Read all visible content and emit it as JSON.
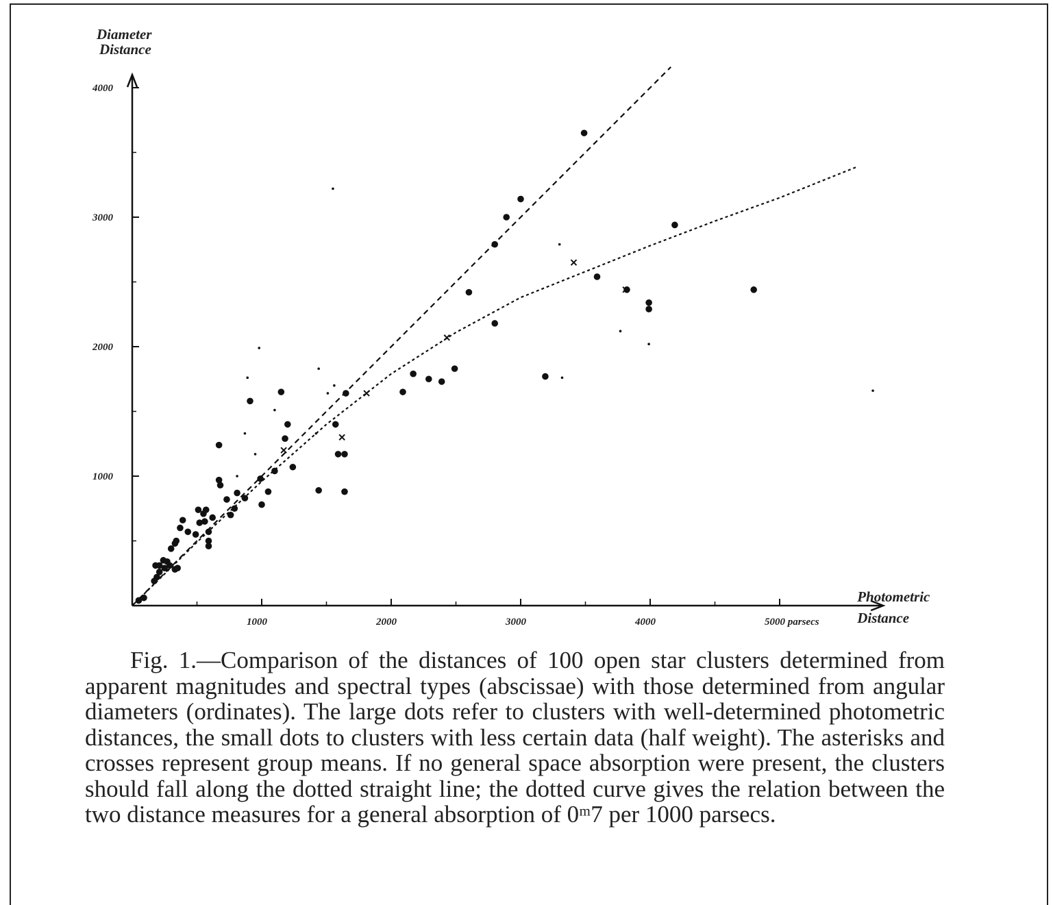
{
  "chart_data": {
    "type": "scatter",
    "ylabel": [
      "Diameter",
      "Distance"
    ],
    "xlabel": [
      "Photometric",
      "Distance"
    ],
    "xlim": [
      0,
      5800
    ],
    "ylim": [
      0,
      4100
    ],
    "xticks": [
      1000,
      2000,
      3000,
      4000,
      {
        "value": 5000,
        "label": "5000 parsecs"
      }
    ],
    "yticks": [
      1000,
      2000,
      3000,
      4000
    ],
    "xminorticks": [
      500,
      1500,
      2500,
      3500,
      4500
    ],
    "yminorticks": [
      500,
      1500,
      2500,
      3500
    ],
    "color": "#111111",
    "series": [
      {
        "marker": "large-dot",
        "x": [
          50,
          90,
          170,
          190,
          210,
          250,
          270,
          290,
          330,
          350,
          180,
          210,
          240,
          300,
          330,
          340,
          370,
          390,
          430,
          490,
          510,
          550,
          570,
          520,
          560,
          590,
          590,
          590,
          620,
          670,
          670,
          680,
          730,
          760,
          790,
          810,
          870,
          910,
          990,
          1000,
          1050,
          1100,
          1150,
          1180,
          1200,
          1240,
          1440,
          1570,
          1590,
          1640,
          1640,
          1650,
          2090,
          2170,
          2290,
          2390,
          2490,
          2600,
          2800,
          2800,
          2890,
          3000,
          3190,
          3490,
          3590,
          3820,
          3990,
          3990,
          4190,
          4800
        ],
        "values": [
          40,
          60,
          190,
          220,
          260,
          290,
          340,
          310,
          280,
          290,
          310,
          310,
          350,
          440,
          480,
          500,
          600,
          660,
          570,
          550,
          740,
          710,
          740,
          640,
          650,
          570,
          500,
          460,
          680,
          1240,
          970,
          930,
          820,
          700,
          750,
          870,
          830,
          1580,
          980,
          780,
          880,
          1040,
          1650,
          1290,
          1400,
          1070,
          890,
          1400,
          1170,
          1170,
          880,
          1640,
          1650,
          1790,
          1750,
          1730,
          1830,
          2420,
          2180,
          2790,
          3000,
          3140,
          1770,
          3650,
          2540,
          2440,
          2340,
          2290,
          2940,
          2440
        ]
      },
      {
        "marker": "small-dot",
        "x": [
          980,
          890,
          870,
          950,
          1100,
          1440,
          1510,
          1560,
          1420,
          810,
          5720,
          3990,
          3770,
          3320,
          3300,
          1550
        ],
        "values": [
          1990,
          1760,
          1330,
          1170,
          1510,
          1830,
          1640,
          1700,
          1330,
          1000,
          1660,
          2020,
          2120,
          1760,
          2790,
          3220
        ]
      },
      {
        "marker": "cross",
        "x": [
          1810,
          2430,
          3410,
          3810,
          1620,
          1170
        ],
        "values": [
          1640,
          2070,
          2650,
          2440,
          1300,
          1200
        ]
      }
    ],
    "lines": [
      {
        "style": "dashed",
        "x": [
          0,
          4160
        ],
        "values": [
          0,
          4160
        ]
      },
      {
        "style": "dotted",
        "x": [
          0,
          500,
          1000,
          1500,
          2000,
          2500,
          3000,
          3500,
          4000,
          4500,
          5000,
          5600
        ],
        "values": [
          0,
          490,
          960,
          1400,
          1790,
          2110,
          2380,
          2580,
          2780,
          2970,
          3150,
          3390
        ]
      }
    ]
  },
  "caption": "Fig. 1.—Comparison of the distances of 100 open star clusters determined from apparent magnitudes and spectral types (abscissae) with those determined from angular diameters (ordinates). The large dots refer to clusters with well-determined photometric distances, the small dots to clusters with less certain data (half weight). The asterisks and crosses represent group means. If no general space absorption were present, the clusters should fall along the dotted straight line; the dotted curve gives the relation between the two distance measures for a general absorption of 0ᵐ7 per 1000 parsecs."
}
